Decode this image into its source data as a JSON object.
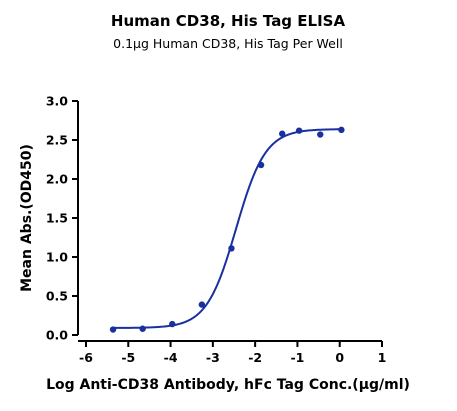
{
  "chart_data": {
    "type": "scatter",
    "title": "Human CD38, His Tag ELISA",
    "subtitle": "0.1µg Human CD38, His Tag Per Well",
    "xlabel": "Log Anti-CD38 Antibody, hFc Tag Conc.(µg/ml)",
    "ylabel": "Mean Abs.(OD450)",
    "xlim": [
      -6,
      1
    ],
    "ylim": [
      0,
      3.0
    ],
    "xticks": [
      "-6",
      "-5",
      "-4",
      "-3",
      "-2",
      "-1",
      "0",
      "1"
    ],
    "yticks": [
      "0.0",
      "0.5",
      "1.0",
      "1.5",
      "2.0",
      "2.5",
      "3.0"
    ],
    "grid": false,
    "colors": {
      "series": "#1a2fa0"
    },
    "series": [
      {
        "x": [
          -5.36,
          -4.66,
          -3.96,
          -3.26,
          -2.56,
          -1.86,
          -1.36,
          -0.96,
          -0.46,
          0.04
        ],
        "y": [
          0.07,
          0.08,
          0.14,
          0.39,
          1.11,
          2.18,
          2.58,
          2.62,
          2.57,
          2.63
        ],
        "fit": {
          "model": "4PL",
          "bottom": 0.09,
          "top": 2.64,
          "logEC50": -2.45,
          "hill": 1.25
        }
      }
    ]
  }
}
